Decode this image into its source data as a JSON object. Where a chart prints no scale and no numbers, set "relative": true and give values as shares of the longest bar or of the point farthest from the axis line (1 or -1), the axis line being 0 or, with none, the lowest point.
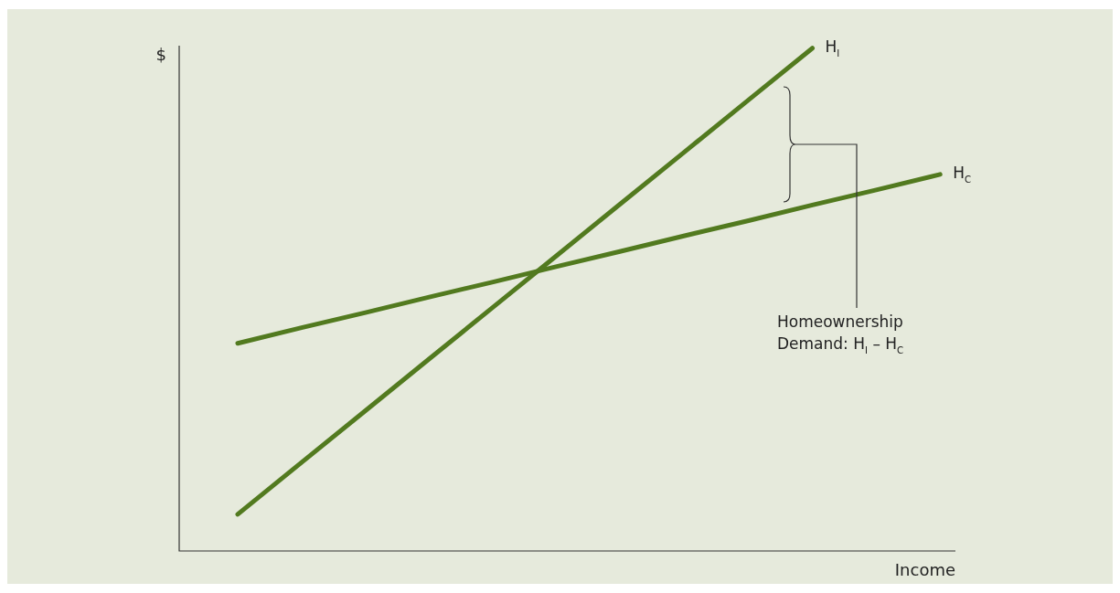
{
  "chart_data": {
    "type": "line",
    "relative": true,
    "xlabel": "Income",
    "ylabel": "$",
    "categories": [
      null,
      null,
      null,
      null,
      null,
      null,
      null,
      null,
      null,
      null,
      null,
      null
    ],
    "series": [
      {
        "name": "H$_{I}$",
        "color": "#527a1f",
        "values": [
          0.073,
          0.176,
          0.279,
          0.382,
          0.485,
          0.588,
          0.691,
          0.794,
          0.897,
          1.0,
          null,
          null
        ]
      },
      {
        "name": "H$_{C}$",
        "color": "#527a1f",
        "values": [
          0.413,
          0.444,
          0.474,
          0.505,
          0.535,
          0.566,
          0.596,
          0.627,
          0.657,
          0.688,
          0.718,
          0.749
        ]
      }
    ],
    "annotations": [
      "Homeownership Demand: H$_{I}$ – H$_{C}$"
    ],
    "legend": false,
    "marker": "none",
    "line_style": "solid"
  }
}
